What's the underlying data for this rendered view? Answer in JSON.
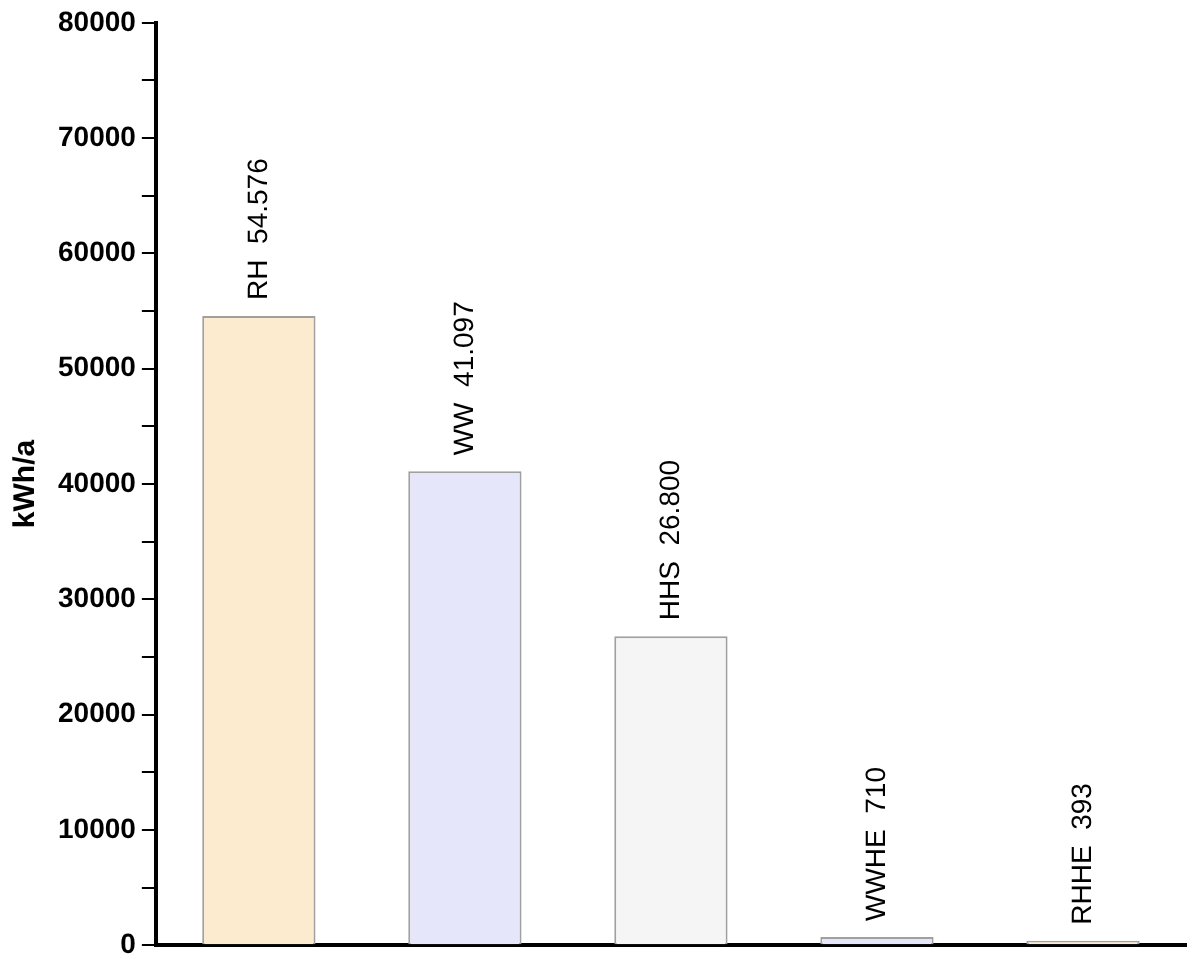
{
  "chart_data": {
    "type": "bar",
    "ylabel": "kWh/a",
    "categories": [
      "RH",
      "WW",
      "HHS",
      "WWHE",
      "RHHE"
    ],
    "values": [
      54576,
      41097,
      26800,
      710,
      393
    ],
    "value_labels": [
      "54.576",
      "41.097",
      "26.800",
      "710",
      "393"
    ],
    "colors": [
      "#fdebd0",
      "#e6e6fa",
      "#f5f5f5",
      "#e6e6fa",
      "#fdebd0"
    ],
    "ylim": [
      0,
      80000
    ],
    "yticks": [
      0,
      {
        "value": 5000,
        "label": null
      },
      10000,
      {
        "value": 15000,
        "label": null
      },
      20000,
      {
        "value": 25000,
        "label": null
      },
      30000,
      {
        "value": 35000,
        "label": null
      },
      40000,
      {
        "value": 45000,
        "label": null
      },
      50000,
      {
        "value": 55000,
        "label": null
      },
      60000,
      {
        "value": 65000,
        "label": null
      },
      70000,
      {
        "value": 75000,
        "label": null
      },
      80000
    ],
    "grid": false,
    "legend": false,
    "tick_labels": "y"
  }
}
